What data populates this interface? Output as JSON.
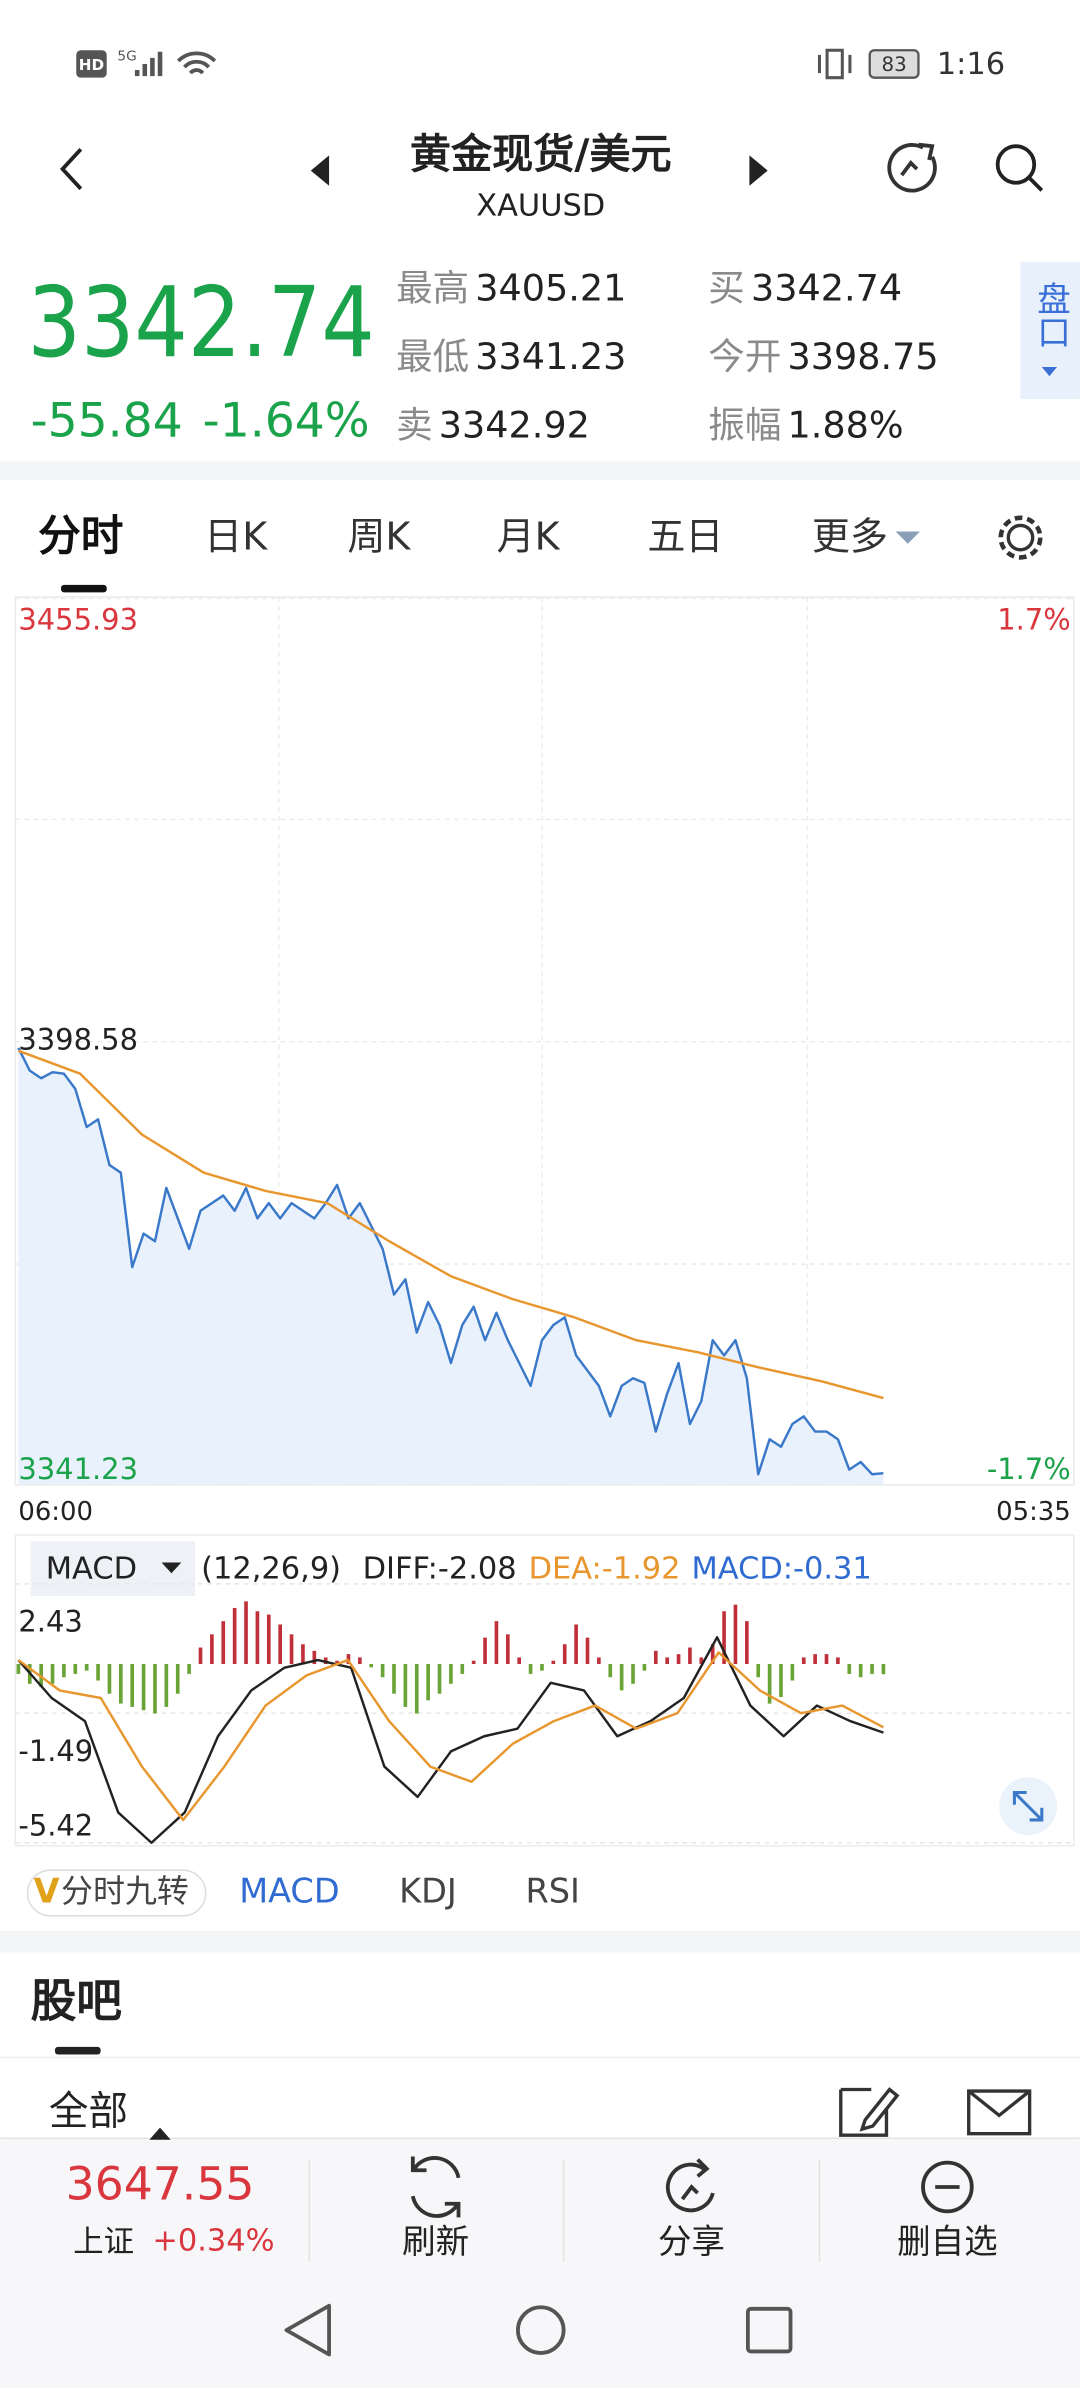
{
  "status_bar": {
    "badge": "HD",
    "network": "5G",
    "battery": "83",
    "time": "1:16"
  },
  "header": {
    "title": "黄金现货/美元",
    "symbol": "XAUUSD"
  },
  "quote": {
    "price": "3342.74",
    "change": "-55.84",
    "change_pct": "-1.64%",
    "stats": [
      {
        "label": "最高",
        "value": "3405.21"
      },
      {
        "label": "买",
        "value": "3342.74"
      },
      {
        "label": "最低",
        "value": "3341.23"
      },
      {
        "label": "今开",
        "value": "3398.75"
      },
      {
        "label": "卖",
        "value": "3342.92"
      },
      {
        "label": "振幅",
        "value": "1.88%"
      }
    ],
    "side_tab": "盘口"
  },
  "tabs": [
    "分时",
    "日K",
    "周K",
    "月K",
    "五日",
    "更多"
  ],
  "chart_data": [
    {
      "type": "line",
      "ylim": [
        3341.23,
        3455.93
      ],
      "yticks": [
        3341.23,
        3398.58,
        3455.93
      ],
      "y2lim": [
        -1.7,
        1.7
      ],
      "y2ticks": [
        {
          "value": -1.7,
          "label": "-1.7%"
        },
        {
          "value": 1.7,
          "label": "1.7%"
        }
      ],
      "x_labels": [
        "06:00",
        "05:35"
      ],
      "series": [
        {
          "color": "#3a78c9",
          "fill": "#e8f1fc",
          "values": [
            3397.79,
            3394.84,
            3393.85,
            3394.64,
            3394.44,
            3392.47,
            3387.54,
            3388.53,
            3382.62,
            3381.63,
            3369.41,
            3373.75,
            3372.76,
            3379.66,
            3375.72,
            3371.78,
            3376.7,
            3377.69,
            3378.67,
            3376.7,
            3379.66,
            3375.72,
            3377.69,
            3375.72,
            3377.69,
            3376.7,
            3375.72,
            3377.69,
            3380.05,
            3375.72,
            3377.69,
            3374.73,
            3371.78,
            3365.86,
            3367.83,
            3360.94,
            3364.88,
            3361.92,
            3357.0,
            3361.92,
            3364.29,
            3359.95,
            3363.5,
            3359.95,
            3357.0,
            3354.04,
            3359.95,
            3361.92,
            3362.91,
            3357.98,
            3356.01,
            3354.04,
            3350.1,
            3354.04,
            3355.03,
            3354.43,
            3348.13,
            3353.05,
            3357.0,
            3349.11,
            3352.07,
            3359.95,
            3357.98,
            3359.95,
            3355.03,
            3342.61,
            3347.14,
            3346.16,
            3349.11,
            3350.1,
            3348.13,
            3348.13,
            3347.14,
            3343.2,
            3344.19,
            3342.61,
            3342.74
          ]
        },
        {
          "color": "#e8962e",
          "values": [
            3397.4,
            3394.44,
            3386.56,
            3381.63,
            3379.27,
            3377.69,
            3372.76,
            3368.23,
            3365.27,
            3362.91,
            3359.95,
            3358.38,
            3356.4,
            3354.63,
            3352.46
          ]
        }
      ]
    },
    {
      "type": "macd",
      "indicator": "MACD",
      "params": "(12,26,9)",
      "legend": [
        "DIFF:-2.08",
        "DEA:-1.92",
        "MACD:-0.31"
      ],
      "ylim": [
        -5.42,
        2.43
      ],
      "yticks": [
        2.43,
        -1.49,
        -5.42
      ],
      "series": [
        {
          "name": "DIFF",
          "color": "#222222",
          "values": [
            0.12,
            -1.03,
            -1.73,
            -4.5,
            -5.42,
            -4.5,
            -2.19,
            -0.8,
            -0.11,
            0.12,
            -0.11,
            -3.11,
            -4.03,
            -2.65,
            -2.19,
            -1.96,
            -0.57,
            -0.8,
            -2.19,
            -1.73,
            -1.03,
            0.81,
            -1.26,
            -2.19,
            -1.26,
            -1.73,
            -2.08
          ]
        },
        {
          "name": "DEA",
          "color": "#e8962e",
          "values": [
            0.12,
            -0.8,
            -1.03,
            -3.11,
            -4.73,
            -3.11,
            -1.26,
            -0.34,
            0.12,
            -1.73,
            -3.11,
            -3.57,
            -2.42,
            -1.73,
            -1.26,
            -1.96,
            -1.49,
            0.35,
            -0.8,
            -1.49,
            -1.26,
            -1.92
          ]
        },
        {
          "name": "MACD",
          "color": "#2f6bd1",
          "pos_color": "#c0303a",
          "neg_color": "#6aa336",
          "values": [
            -0.3,
            -0.6,
            -0.7,
            -0.6,
            -0.4,
            -0.3,
            -0.2,
            -0.5,
            -0.9,
            -1.2,
            -1.3,
            -1.4,
            -1.5,
            -1.3,
            -0.9,
            -0.3,
            0.5,
            0.9,
            1.3,
            1.7,
            1.9,
            1.6,
            1.5,
            1.2,
            0.9,
            0.6,
            0.4,
            0.2,
            0.1,
            0.3,
            0.2,
            -0.1,
            -0.4,
            -0.9,
            -1.3,
            -1.5,
            -1.1,
            -0.9,
            -0.6,
            -0.3,
            0.1,
            0.8,
            1.3,
            0.9,
            0.2,
            -0.3,
            -0.2,
            0.1,
            0.6,
            1.2,
            0.8,
            0.2,
            -0.4,
            -0.8,
            -0.6,
            -0.2,
            0.4,
            0.2,
            0.3,
            0.5,
            0.2,
            0.6,
            1.6,
            1.8,
            1.3,
            -0.4,
            -1.2,
            -1.0,
            -0.5,
            0.2,
            0.3,
            0.3,
            0.2,
            -0.3,
            -0.4,
            -0.3,
            -0.31
          ]
        }
      ]
    }
  ],
  "indicator_tabs": [
    "分时九转",
    "MACD",
    "KDJ",
    "RSI"
  ],
  "forum": {
    "title": "股吧",
    "filter": "全部"
  },
  "bottom_bar": {
    "index_value": "3647.55",
    "index_name": "上证",
    "index_change": "+0.34%",
    "buttons": [
      "刷新",
      "分享",
      "删自选"
    ]
  }
}
